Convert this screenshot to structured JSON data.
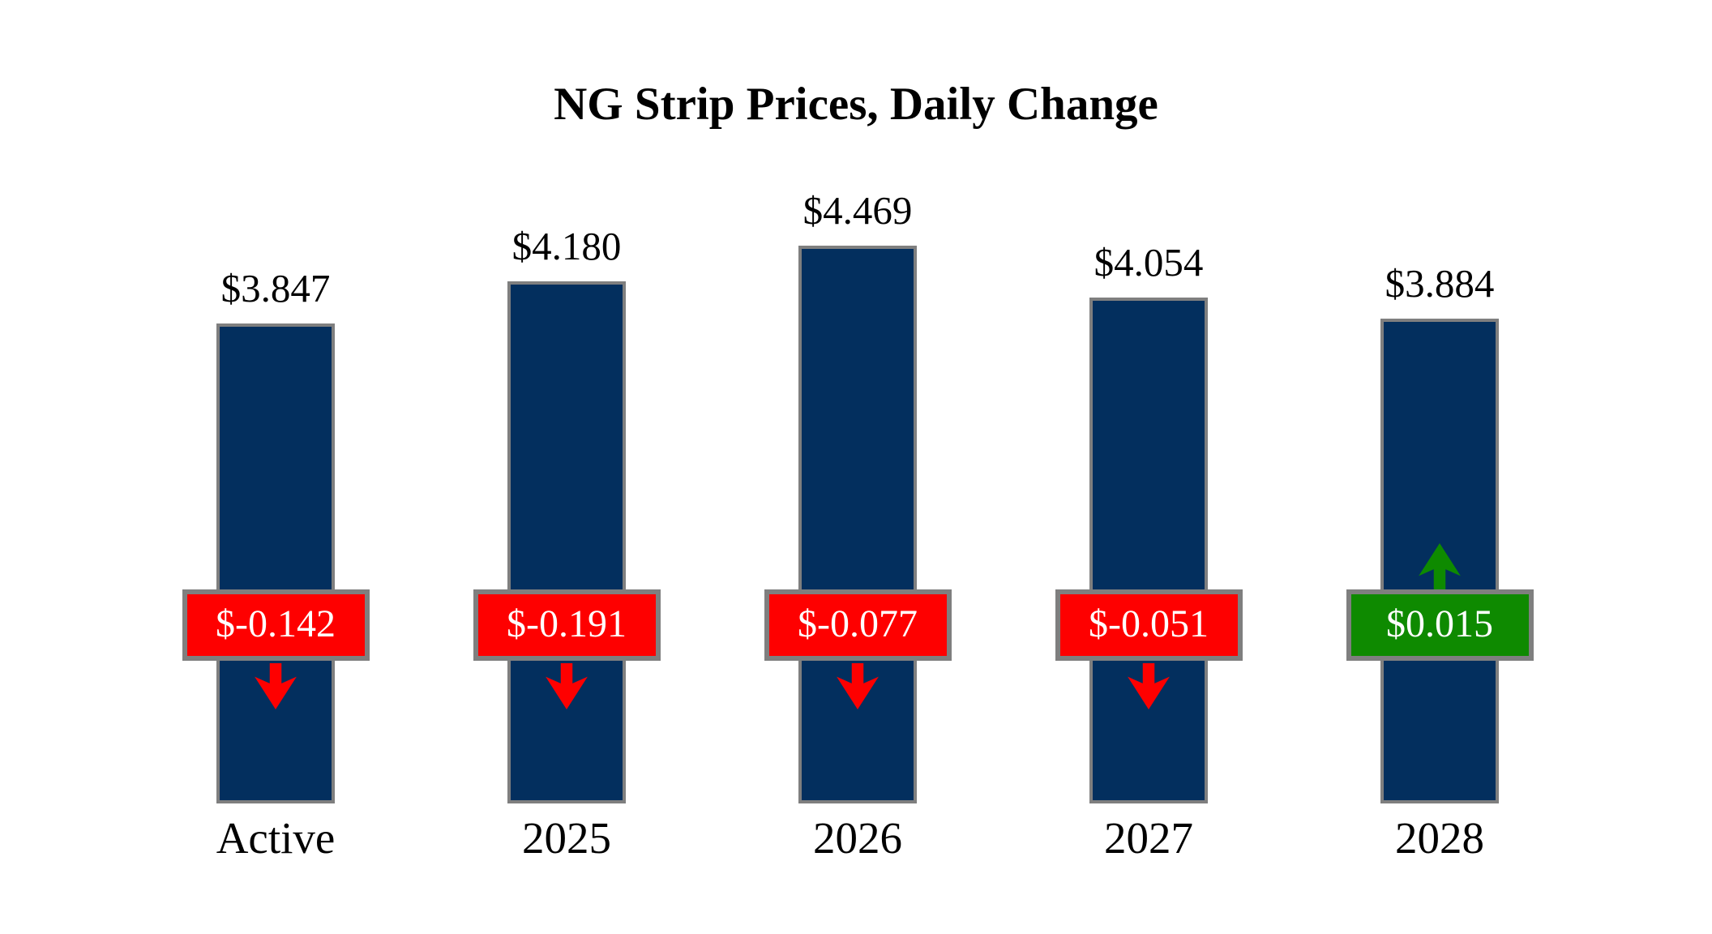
{
  "chart_data": {
    "type": "bar",
    "title": "NG Strip Prices, Daily Change",
    "categories": [
      "Active",
      "2025",
      "2026",
      "2027",
      "2028"
    ],
    "series": [
      {
        "name": "strip_price",
        "values": [
          3.847,
          4.18,
          4.469,
          4.054,
          3.884
        ],
        "labels": [
          "$3.847",
          "$4.180",
          "$4.469",
          "$4.054",
          "$3.884"
        ]
      },
      {
        "name": "daily_change",
        "values": [
          -0.142,
          -0.191,
          -0.077,
          -0.051,
          0.015
        ],
        "labels": [
          "$-0.142",
          "$-0.191",
          "$-0.077",
          "$-0.051",
          "$0.015"
        ]
      }
    ],
    "ylim": [
      0,
      4.469
    ],
    "grid": false,
    "legend": false,
    "axes_visible": false
  },
  "colors": {
    "bar_fill": "#032f5e",
    "outline_gray": "#7f7f7f",
    "negative_red": "#fe0000",
    "positive_green": "#0e8a00",
    "badge_text": "#ffffff",
    "label_text": "#000000",
    "background": "#ffffff"
  }
}
